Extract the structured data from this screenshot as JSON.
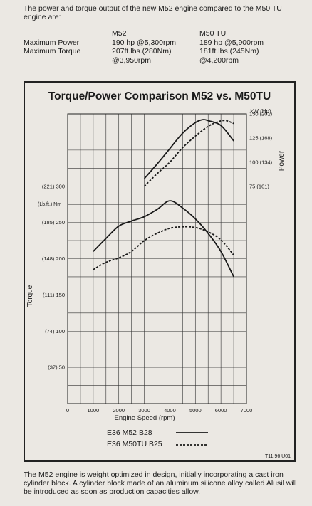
{
  "intro_text": "The power and torque output of the new M52 engine compared to the M50 TU engine are:",
  "specs": {
    "headers": [
      "",
      "M52",
      "M50 TU"
    ],
    "rows": [
      [
        "Maximum Power",
        "190 hp @5,300rpm",
        "189 hp @5,900rpm"
      ],
      [
        "Maximum Torque",
        "207ft.lbs.(280Nm)",
        "181ft.lbs.(245Nm)"
      ],
      [
        "",
        "@3,950rpm",
        "@4,200rpm"
      ]
    ]
  },
  "footer_text": "The M52 engine is weight optimized in design, initially incorporating a cast iron cylinder block.  A cylinder block made of an aluminum silicone alloy called Alusil will be introduced as soon as production capacities allow.",
  "figure_id": "T11 96 U01",
  "chart_data": {
    "type": "line",
    "title": "Torque/Power Comparison M52 vs. M50TU",
    "xlabel": "Engine Speed (rpm)",
    "ylabel_left": "Torque",
    "ylabel_left_unit": "(Lb.ft.) Nm",
    "ylabel_right": "Power",
    "ylabel_right_unit": "kW  (Hp)",
    "xlim": [
      0,
      7000
    ],
    "xticks": [
      "0",
      "1000",
      "2000",
      "3000",
      "4000",
      "5000",
      "6000",
      "7000"
    ],
    "torque_ylim": [
      0,
      400
    ],
    "torque_ticks": [
      {
        "value": 50,
        "label": "(37) 50"
      },
      {
        "value": 100,
        "label": "(74) 100"
      },
      {
        "value": 150,
        "label": "(111) 150"
      },
      {
        "value": 200,
        "label": "(148) 200"
      },
      {
        "value": 250,
        "label": "(185) 250"
      },
      {
        "value": 300,
        "label": "(221) 300"
      }
    ],
    "power_ticks": [
      {
        "value": 75,
        "label": "75 (101)"
      },
      {
        "value": 100,
        "label": "100 (134)"
      },
      {
        "value": 125,
        "label": "125 (168)"
      },
      {
        "value": 150,
        "label": "150 (201)"
      }
    ],
    "grid": true,
    "legend_position": "bottom-center",
    "series": [
      {
        "name": "E36 M52 B28",
        "quantity": "torque",
        "style": "solid",
        "x": [
          1000,
          1500,
          2000,
          2500,
          3000,
          3500,
          4000,
          4500,
          5000,
          5500,
          6000,
          6500
        ],
        "y": [
          210,
          228,
          245,
          252,
          258,
          268,
          280,
          270,
          255,
          235,
          210,
          175
        ]
      },
      {
        "name": "E36 M52 B28",
        "quantity": "power",
        "style": "solid",
        "x": [
          3000,
          3500,
          4000,
          4500,
          5000,
          5300,
          5500,
          6000,
          6500
        ],
        "y": [
          83,
          98,
          114,
          130,
          141,
          144,
          143,
          138,
          122
        ]
      },
      {
        "name": "E36 M50TU B25",
        "quantity": "torque",
        "style": "dashed",
        "x": [
          1000,
          1500,
          2000,
          2500,
          3000,
          3500,
          4000,
          4500,
          5000,
          5500,
          6000,
          6500
        ],
        "y": [
          185,
          195,
          201,
          210,
          225,
          235,
          242,
          244,
          243,
          237,
          226,
          205
        ]
      },
      {
        "name": "E36 M50TU B25",
        "quantity": "power",
        "style": "dashed",
        "x": [
          3000,
          3500,
          4000,
          4500,
          5000,
          5500,
          5900,
          6200,
          6500
        ],
        "y": [
          75,
          88,
          100,
          115,
          127,
          137,
          142,
          143,
          140
        ]
      }
    ]
  }
}
